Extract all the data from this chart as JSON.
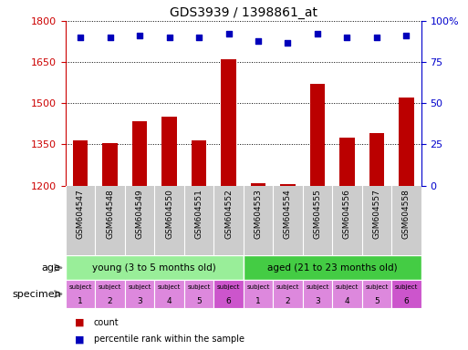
{
  "title": "GDS3939 / 1398861_at",
  "samples": [
    "GSM604547",
    "GSM604548",
    "GSM604549",
    "GSM604550",
    "GSM604551",
    "GSM604552",
    "GSM604553",
    "GSM604554",
    "GSM604555",
    "GSM604556",
    "GSM604557",
    "GSM604558"
  ],
  "counts": [
    1365,
    1355,
    1435,
    1450,
    1365,
    1660,
    1210,
    1205,
    1570,
    1375,
    1390,
    1520
  ],
  "percentiles": [
    90,
    90,
    91,
    90,
    90,
    92,
    88,
    87,
    92,
    90,
    90,
    91
  ],
  "ylim_left": [
    1200,
    1800
  ],
  "ylim_right": [
    0,
    100
  ],
  "yticks_left": [
    1200,
    1350,
    1500,
    1650,
    1800
  ],
  "yticks_right": [
    0,
    25,
    50,
    75,
    100
  ],
  "bar_color": "#bb0000",
  "dot_color": "#0000bb",
  "age_groups": [
    {
      "label": "young (3 to 5 months old)",
      "start": 0,
      "end": 6,
      "color": "#99ee99"
    },
    {
      "label": "aged (21 to 23 months old)",
      "start": 6,
      "end": 12,
      "color": "#44cc44"
    }
  ],
  "specimen_colors_light": "#dd88dd",
  "specimen_colors_dark": "#cc55cc",
  "specimen_dark_indices": [
    5,
    11
  ],
  "specimen_labels_top": [
    "subject",
    "subject",
    "subject",
    "subject",
    "subject",
    "subject",
    "subject",
    "subject",
    "subject",
    "subject",
    "subject",
    "subject"
  ],
  "specimen_labels_bot": [
    "1",
    "2",
    "3",
    "4",
    "5",
    "6",
    "1",
    "2",
    "3",
    "4",
    "5",
    "6"
  ],
  "age_label": "age",
  "specimen_label": "specimen",
  "legend_count_color": "#bb0000",
  "legend_dot_color": "#0000bb",
  "tick_color_left": "#cc0000",
  "tick_color_right": "#0000cc",
  "xticklabel_bg": "#cccccc",
  "plot_bg": "#ffffff",
  "fig_bg": "#ffffff"
}
